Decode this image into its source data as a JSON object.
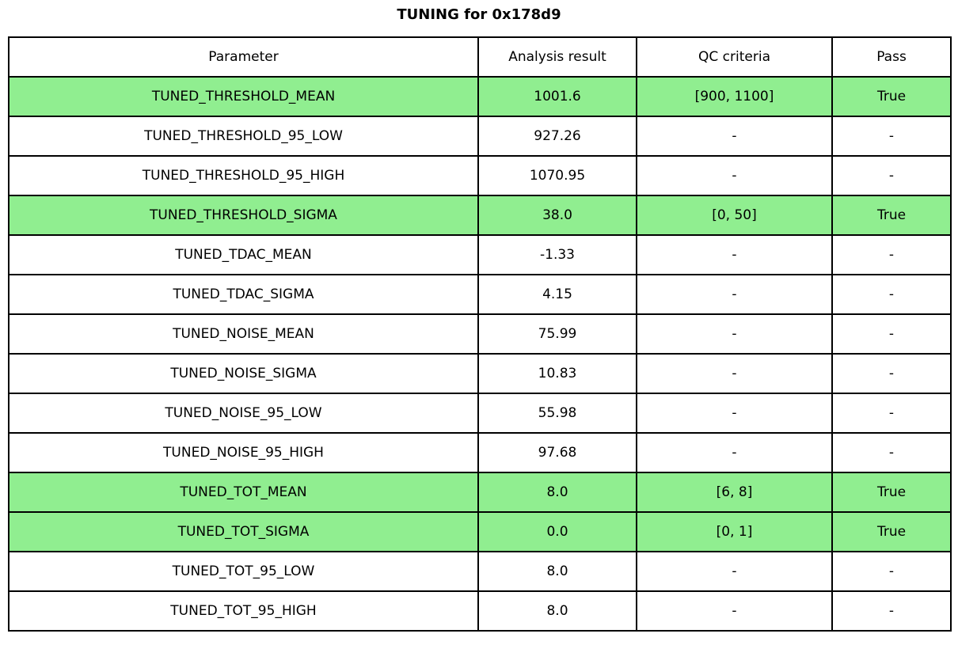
{
  "chart_data": {
    "type": "table",
    "title": "TUNING for 0x178d9",
    "columns": [
      "Parameter",
      "Analysis result",
      "QC criteria",
      "Pass"
    ],
    "rows": [
      {
        "param": "TUNED_THRESHOLD_MEAN",
        "result": "1001.6",
        "qc": "[900, 1100]",
        "pass": "True",
        "highlight": true
      },
      {
        "param": "TUNED_THRESHOLD_95_LOW",
        "result": "927.26",
        "qc": "-",
        "pass": "-",
        "highlight": false
      },
      {
        "param": "TUNED_THRESHOLD_95_HIGH",
        "result": "1070.95",
        "qc": "-",
        "pass": "-",
        "highlight": false
      },
      {
        "param": "TUNED_THRESHOLD_SIGMA",
        "result": "38.0",
        "qc": "[0, 50]",
        "pass": "True",
        "highlight": true
      },
      {
        "param": "TUNED_TDAC_MEAN",
        "result": "-1.33",
        "qc": "-",
        "pass": "-",
        "highlight": false
      },
      {
        "param": "TUNED_TDAC_SIGMA",
        "result": "4.15",
        "qc": "-",
        "pass": "-",
        "highlight": false
      },
      {
        "param": "TUNED_NOISE_MEAN",
        "result": "75.99",
        "qc": "-",
        "pass": "-",
        "highlight": false
      },
      {
        "param": "TUNED_NOISE_SIGMA",
        "result": "10.83",
        "qc": "-",
        "pass": "-",
        "highlight": false
      },
      {
        "param": "TUNED_NOISE_95_LOW",
        "result": "55.98",
        "qc": "-",
        "pass": "-",
        "highlight": false
      },
      {
        "param": "TUNED_NOISE_95_HIGH",
        "result": "97.68",
        "qc": "-",
        "pass": "-",
        "highlight": false
      },
      {
        "param": "TUNED_TOT_MEAN",
        "result": "8.0",
        "qc": "[6, 8]",
        "pass": "True",
        "highlight": true
      },
      {
        "param": "TUNED_TOT_SIGMA",
        "result": "0.0",
        "qc": "[0, 1]",
        "pass": "True",
        "highlight": true
      },
      {
        "param": "TUNED_TOT_95_LOW",
        "result": "8.0",
        "qc": "-",
        "pass": "-",
        "highlight": false
      },
      {
        "param": "TUNED_TOT_95_HIGH",
        "result": "8.0",
        "qc": "-",
        "pass": "-",
        "highlight": false
      }
    ],
    "colors": {
      "highlight": "#90EE90",
      "border": "#000000",
      "background": "#ffffff",
      "text": "#000000"
    },
    "layout_hints": {
      "title_position": "top-center",
      "pass_rows_highlighted": true
    }
  }
}
